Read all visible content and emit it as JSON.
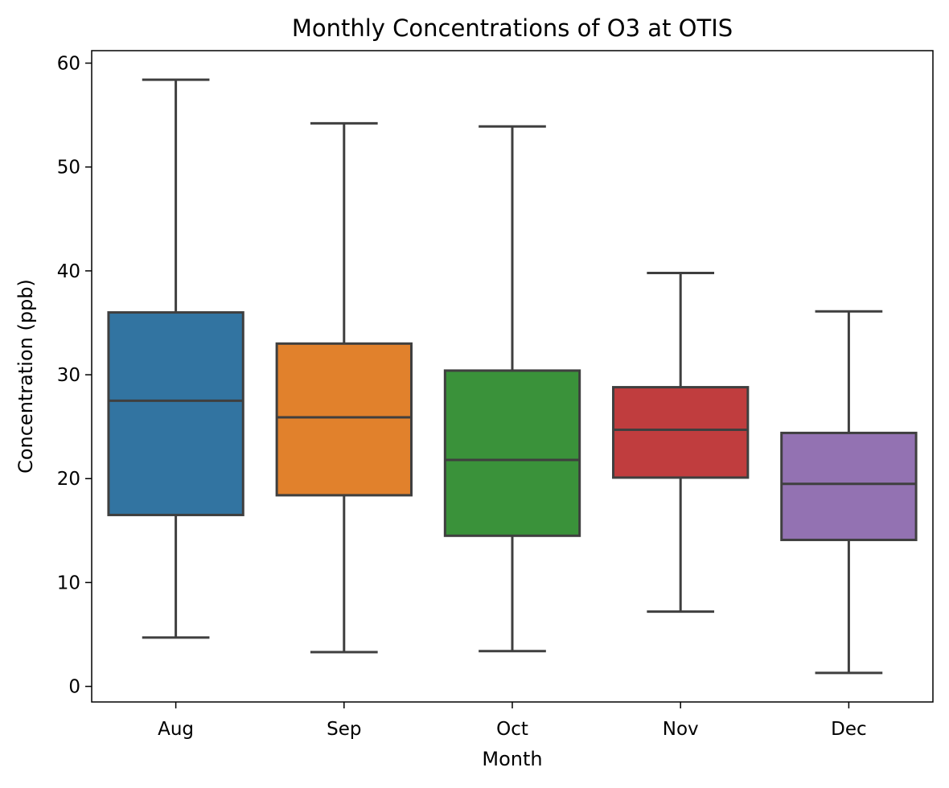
{
  "chart_data": {
    "type": "box",
    "title": "Monthly Concentrations of O3 at OTIS",
    "xlabel": "Month",
    "ylabel": "Concentration (ppb)",
    "ylim": [
      -1.5,
      61.2
    ],
    "yticks": [
      0,
      10,
      20,
      30,
      40,
      50,
      60
    ],
    "categories": [
      "Aug",
      "Sep",
      "Oct",
      "Nov",
      "Dec"
    ],
    "colors": [
      "#3274a1",
      "#e1812c",
      "#3a923a",
      "#c03d3e",
      "#9372b2"
    ],
    "edge_color": "#3f3f3f",
    "grid": false,
    "boxes": [
      {
        "category": "Aug",
        "whisker_low": 4.7,
        "q1": 16.5,
        "median": 27.5,
        "q3": 36.0,
        "whisker_high": 58.4
      },
      {
        "category": "Sep",
        "whisker_low": 3.3,
        "q1": 18.4,
        "median": 25.9,
        "q3": 33.0,
        "whisker_high": 54.2
      },
      {
        "category": "Oct",
        "whisker_low": 3.4,
        "q1": 14.5,
        "median": 21.8,
        "q3": 30.4,
        "whisker_high": 53.9
      },
      {
        "category": "Nov",
        "whisker_low": 7.2,
        "q1": 20.1,
        "median": 24.7,
        "q3": 28.8,
        "whisker_high": 39.8
      },
      {
        "category": "Dec",
        "whisker_low": 1.3,
        "q1": 14.1,
        "median": 19.5,
        "q3": 24.4,
        "whisker_high": 36.1
      }
    ]
  }
}
